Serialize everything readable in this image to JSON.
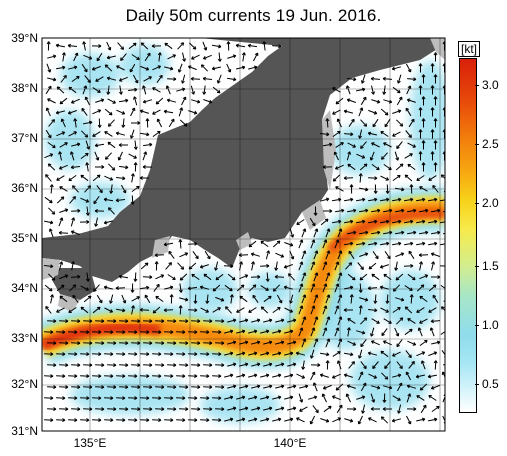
{
  "title": "Daily 50m currents 19 Jun. 2016.",
  "axes": {
    "lat_labels": [
      "39°N",
      "38°N",
      "37°N",
      "36°N",
      "35°N",
      "34°N",
      "33°N",
      "32°N",
      "31°N"
    ],
    "lon_labels": [
      "135°E",
      "140°E"
    ]
  },
  "colorbar": {
    "unit": "[kt]",
    "ticks": [
      "3.0",
      "2.5",
      "2.0",
      "1.5",
      "1.0",
      "0.5"
    ],
    "range": [
      0,
      3.3
    ]
  },
  "colors": {
    "land": "#555555",
    "shelf": "#bdbdbd",
    "sea": "#ffffff",
    "arrow": "#000000",
    "strong_current": "#e8400c"
  }
}
